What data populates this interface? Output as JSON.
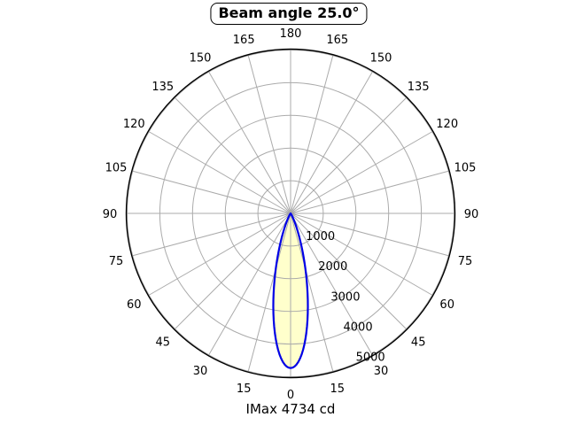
{
  "chart_data": {
    "type": "polar",
    "title": "Beam angle 25.0°",
    "footer": "IMax 4734 cd",
    "imax_cd": 4734,
    "beam_angle_deg": 25.0,
    "units": "cd",
    "angle_tick_labels": [
      0,
      15,
      30,
      45,
      60,
      75,
      90,
      105,
      120,
      135,
      150,
      165,
      180
    ],
    "angle_grid_step_deg": 15,
    "radial_ticks": [
      1000,
      2000,
      3000,
      4000,
      5000
    ],
    "r_axis_min": 0,
    "r_axis_max": 5000,
    "rlabel_angle_deg": 22.5,
    "grid": true,
    "orientation": "0-degrees-at-bottom",
    "intensity_profile": {
      "comment": "symmetric about 0 deg; FWHM = beam angle 25 deg",
      "angles_deg": [
        0,
        2.5,
        5,
        7.5,
        10,
        12.5,
        15,
        17.5,
        20,
        22.5,
        25,
        27.5,
        30,
        32.5,
        35
      ],
      "intensity_cd": [
        4734,
        4605,
        4237,
        3689,
        3038,
        2367,
        1745,
        1217,
        803,
        501,
        296,
        165,
        87,
        44,
        21
      ]
    },
    "colors": {
      "background": "#ffffff",
      "grid": "#ababab",
      "outer_ring": "#000000",
      "lobe_fill": "#ffffcc",
      "lobe_stroke": "#0000e6",
      "text": "#000000",
      "title_border": "#000000"
    }
  }
}
